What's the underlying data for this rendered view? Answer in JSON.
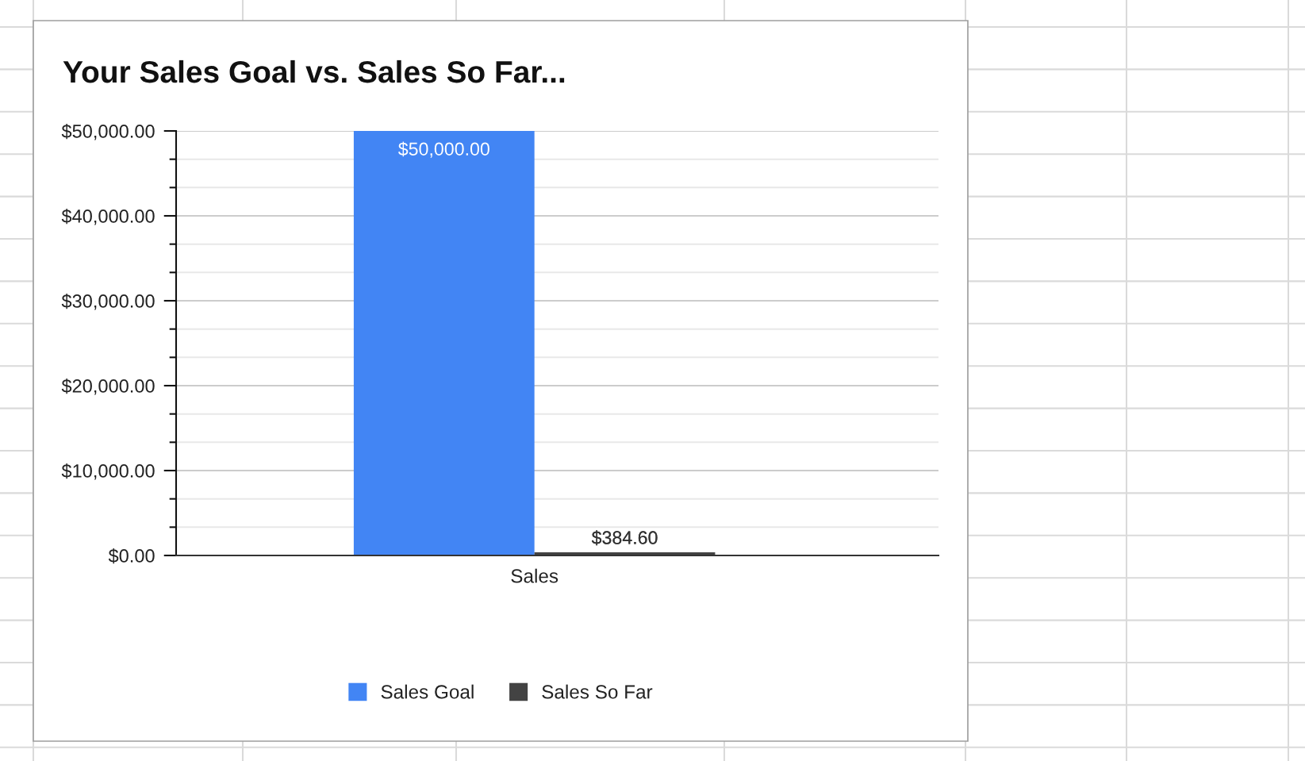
{
  "chart_data": {
    "type": "bar",
    "title": "Your Sales Goal vs. Sales So Far...",
    "categories": [
      "Sales"
    ],
    "series": [
      {
        "name": "Sales Goal",
        "color": "#4285f4",
        "values": [
          50000
        ],
        "value_labels": [
          "$50,000.00"
        ]
      },
      {
        "name": "Sales So Far",
        "color": "#434343",
        "values": [
          384.6
        ],
        "value_labels": [
          "$384.60"
        ]
      }
    ],
    "ylim": [
      0,
      50000
    ],
    "yticks": [
      {
        "value": 0,
        "label": "$0.00"
      },
      {
        "value": 3333,
        "label": null
      },
      {
        "value": 6667,
        "label": null
      },
      {
        "value": 10000,
        "label": "$10,000.00"
      },
      {
        "value": 13333,
        "label": null
      },
      {
        "value": 16667,
        "label": null
      },
      {
        "value": 20000,
        "label": "$20,000.00"
      },
      {
        "value": 23333,
        "label": null
      },
      {
        "value": 26667,
        "label": null
      },
      {
        "value": 30000,
        "label": "$30,000.00"
      },
      {
        "value": 33333,
        "label": null
      },
      {
        "value": 36667,
        "label": null
      },
      {
        "value": 40000,
        "label": "$40,000.00"
      },
      {
        "value": 43333,
        "label": null
      },
      {
        "value": 46667,
        "label": null
      },
      {
        "value": 50000,
        "label": "$50,000.00"
      }
    ],
    "grid": "y",
    "legend": "bottom"
  }
}
